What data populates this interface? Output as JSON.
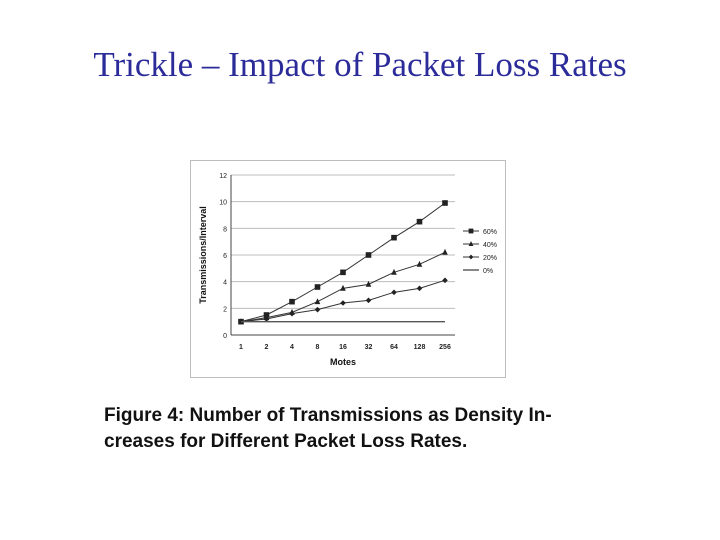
{
  "slide": {
    "title": "Trickle – Impact of Packet Loss Rates"
  },
  "caption": {
    "line1": "Figure 4:  Number  of  Transmissions  as  Density  In-",
    "line2": "creases for Different Packet Loss Rates."
  },
  "chart_data": {
    "type": "line",
    "title": "",
    "xlabel": "Motes",
    "ylabel": "Transmissions/Interval",
    "categories": [
      "1",
      "2",
      "4",
      "8",
      "16",
      "32",
      "64",
      "128",
      "256"
    ],
    "ylim": [
      0,
      12
    ],
    "yticks": [
      0,
      2,
      4,
      6,
      8,
      10,
      12
    ],
    "grid": true,
    "legend_position": "right",
    "series": [
      {
        "name": "60%",
        "marker": "square",
        "values": [
          1,
          1.5,
          2.5,
          3.6,
          4.7,
          6.0,
          7.3,
          8.5,
          9.9
        ]
      },
      {
        "name": "40%",
        "marker": "triangle",
        "values": [
          1,
          1.3,
          1.7,
          2.5,
          3.5,
          3.8,
          4.7,
          5.3,
          6.2
        ]
      },
      {
        "name": "20%",
        "marker": "diamond",
        "values": [
          1,
          1.2,
          1.6,
          1.9,
          2.4,
          2.6,
          3.2,
          3.5,
          4.1
        ]
      },
      {
        "name": "0%",
        "marker": "none",
        "values": [
          1,
          1,
          1,
          1,
          1,
          1,
          1,
          1,
          1
        ]
      }
    ]
  }
}
